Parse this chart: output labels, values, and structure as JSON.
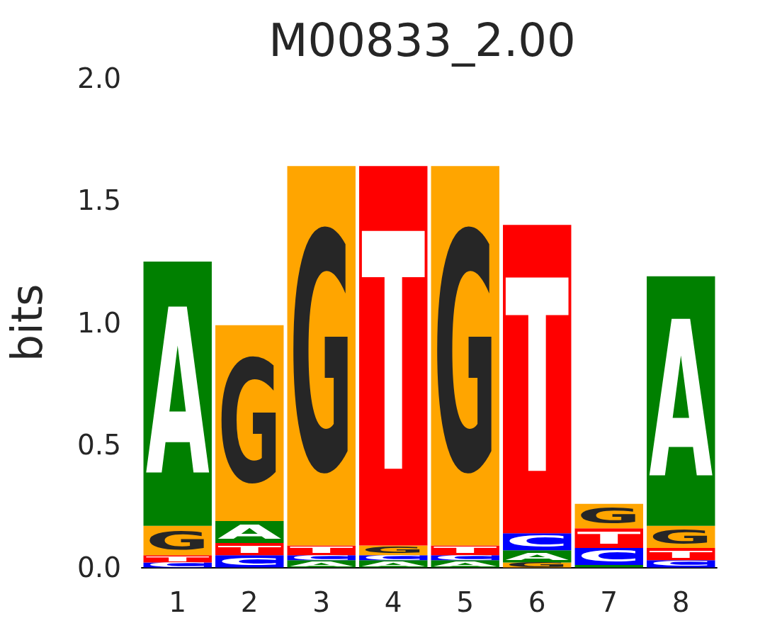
{
  "chart_data": {
    "type": "bar",
    "stacked": true,
    "title": "M00833_2.00",
    "ylabel": "bits",
    "categories": [
      "1",
      "2",
      "3",
      "4",
      "5",
      "6",
      "7",
      "8"
    ],
    "ylim": [
      0,
      2
    ],
    "yticks": [
      {
        "value": 0,
        "label": "0.0"
      },
      0.5,
      {
        "value": 1,
        "label": "1.0"
      },
      1.5,
      {
        "value": 2,
        "label": "2.0"
      }
    ],
    "grid": false,
    "series": [
      {
        "values": [
          0.02,
          0.05,
          0.03,
          0.03,
          0.03,
          0.02,
          0.01,
          0.03
        ],
        "colors": [
          "#0000ff",
          "#0000ff",
          "#008000",
          "#008000",
          "#008000",
          "#ffa500",
          "#008000",
          "#0000ff"
        ],
        "value_labels": [
          "C",
          "C",
          "A",
          "A",
          "A",
          "G",
          null,
          "C"
        ]
      },
      {
        "values": [
          0.03,
          0.05,
          0.02,
          0.02,
          0.02,
          0.05,
          0.07,
          0.05
        ],
        "colors": [
          "#ff0000",
          "#ff0000",
          "#0000ff",
          "#0000ff",
          "#0000ff",
          "#008000",
          "#0000ff",
          "#ff0000"
        ],
        "value_labels": [
          "T",
          "T",
          "C",
          "C",
          "C",
          "A",
          "C",
          "T"
        ]
      },
      {
        "values": [
          0.12,
          0.09,
          0.04,
          0.04,
          0.04,
          0.07,
          0.08,
          0.09
        ],
        "colors": [
          "#ffa500",
          "#008000",
          "#ff0000",
          "#ffa500",
          "#ff0000",
          "#0000ff",
          "#ff0000",
          "#ffa500"
        ],
        "value_labels": [
          "G",
          "A",
          "T",
          "G",
          "T",
          "C",
          "T",
          "G"
        ]
      },
      {
        "values": [
          1.08,
          0.8,
          1.55,
          1.55,
          1.55,
          1.26,
          0.1,
          1.02
        ],
        "colors": [
          "#008000",
          "#ffa500",
          "#ffa500",
          "#ff0000",
          "#ffa500",
          "#ff0000",
          "#ffa500",
          "#008000"
        ],
        "value_labels": [
          "A",
          "G",
          "G",
          "T",
          "G",
          "T",
          "G",
          "A"
        ]
      }
    ]
  }
}
